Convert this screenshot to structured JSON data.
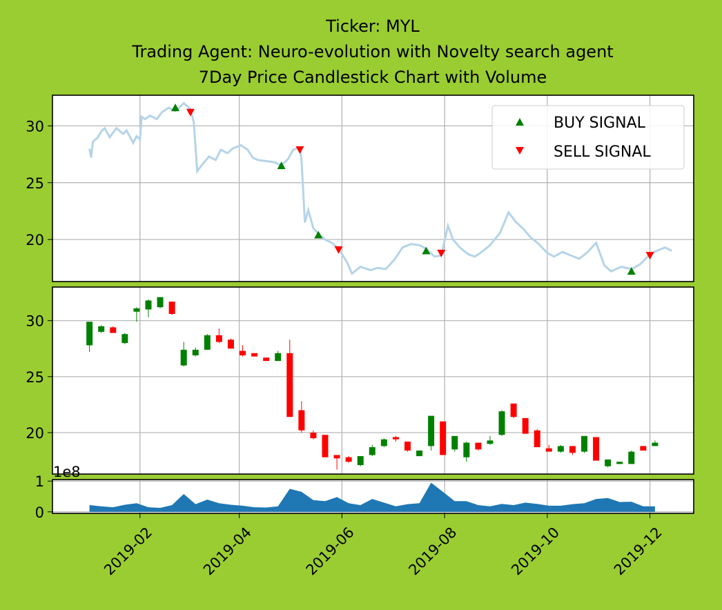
{
  "title_lines": [
    "Ticker: MYL",
    "Trading Agent: Neuro-evolution with Novelty search agent",
    "7Day Price Candlestick Chart with Volume"
  ],
  "chart_data": {
    "type": "candlestick",
    "x_tick_labels": [
      "2019-02",
      "2019-04",
      "2019-06",
      "2019-08",
      "2019-10",
      "2019-12"
    ],
    "x_ticks": [
      "2019-02-01",
      "2019-04-01",
      "2019-06-01",
      "2019-08-01",
      "2019-10-01",
      "2019-12-01"
    ],
    "x_range": [
      "2018-12-11",
      "2019-12-27"
    ],
    "legend_placement": "top-right",
    "colors": {
      "background": "#9acd32",
      "price_line": "#b4d4e8",
      "buy": "#008000",
      "sell": "#ff0000",
      "up_candle": "#008000",
      "down_candle": "#ff0000",
      "volume": "#1f77b4",
      "grid": "#b0b0b0"
    },
    "price_panel": {
      "ylim": [
        16.3,
        32.7
      ],
      "yticks": [
        20,
        25,
        30
      ],
      "grid": true,
      "close_line": [
        [
          "2019-01-02",
          28.0
        ],
        [
          "2019-01-03",
          27.2
        ],
        [
          "2019-01-04",
          28.6
        ],
        [
          "2019-01-07",
          29.0
        ],
        [
          "2019-01-09",
          29.5
        ],
        [
          "2019-01-11",
          29.8
        ],
        [
          "2019-01-14",
          29.0
        ],
        [
          "2019-01-16",
          29.4
        ],
        [
          "2019-01-18",
          29.8
        ],
        [
          "2019-01-22",
          29.3
        ],
        [
          "2019-01-24",
          29.6
        ],
        [
          "2019-01-28",
          28.5
        ],
        [
          "2019-01-30",
          29.1
        ],
        [
          "2019-02-01",
          28.8
        ],
        [
          "2019-02-02",
          30.8
        ],
        [
          "2019-02-04",
          30.6
        ],
        [
          "2019-02-07",
          30.9
        ],
        [
          "2019-02-11",
          30.6
        ],
        [
          "2019-02-14",
          31.2
        ],
        [
          "2019-02-18",
          31.6
        ],
        [
          "2019-02-22",
          31.3
        ],
        [
          "2019-02-27",
          32.0
        ],
        [
          "2019-03-03",
          31.5
        ],
        [
          "2019-03-05",
          30.3
        ],
        [
          "2019-03-07",
          26.0
        ],
        [
          "2019-03-10",
          26.6
        ],
        [
          "2019-03-14",
          27.3
        ],
        [
          "2019-03-18",
          27.0
        ],
        [
          "2019-03-21",
          27.9
        ],
        [
          "2019-03-25",
          27.6
        ],
        [
          "2019-03-28",
          28.0
        ],
        [
          "2019-04-02",
          28.3
        ],
        [
          "2019-04-06",
          27.9
        ],
        [
          "2019-04-09",
          27.2
        ],
        [
          "2019-04-12",
          27.0
        ],
        [
          "2019-04-17",
          26.9
        ],
        [
          "2019-04-22",
          26.8
        ],
        [
          "2019-04-26",
          26.5
        ],
        [
          "2019-04-30",
          27.1
        ],
        [
          "2019-05-03",
          27.9
        ],
        [
          "2019-05-07",
          28.1
        ],
        [
          "2019-05-08",
          26.9
        ],
        [
          "2019-05-10",
          21.5
        ],
        [
          "2019-05-12",
          22.6
        ],
        [
          "2019-05-15",
          21.0
        ],
        [
          "2019-05-18",
          20.5
        ],
        [
          "2019-05-22",
          20.0
        ],
        [
          "2019-05-26",
          19.7
        ],
        [
          "2019-05-30",
          19.2
        ],
        [
          "2019-06-04",
          18.0
        ],
        [
          "2019-06-07",
          17.0
        ],
        [
          "2019-06-12",
          17.6
        ],
        [
          "2019-06-18",
          17.3
        ],
        [
          "2019-06-22",
          17.5
        ],
        [
          "2019-06-27",
          17.4
        ],
        [
          "2019-07-02",
          18.2
        ],
        [
          "2019-07-07",
          19.3
        ],
        [
          "2019-07-12",
          19.6
        ],
        [
          "2019-07-17",
          19.5
        ],
        [
          "2019-07-21",
          19.2
        ],
        [
          "2019-07-26",
          18.5
        ],
        [
          "2019-07-30",
          18.6
        ],
        [
          "2019-08-03",
          21.2
        ],
        [
          "2019-08-06",
          20.0
        ],
        [
          "2019-08-10",
          19.3
        ],
        [
          "2019-08-15",
          18.7
        ],
        [
          "2019-08-19",
          18.5
        ],
        [
          "2019-08-23",
          18.9
        ],
        [
          "2019-08-28",
          19.5
        ],
        [
          "2019-09-03",
          20.6
        ],
        [
          "2019-09-08",
          22.4
        ],
        [
          "2019-09-12",
          21.6
        ],
        [
          "2019-09-17",
          20.9
        ],
        [
          "2019-09-21",
          20.2
        ],
        [
          "2019-09-26",
          19.6
        ],
        [
          "2019-10-01",
          18.8
        ],
        [
          "2019-10-05",
          18.5
        ],
        [
          "2019-10-10",
          18.9
        ],
        [
          "2019-10-15",
          18.6
        ],
        [
          "2019-10-20",
          18.3
        ],
        [
          "2019-10-25",
          18.9
        ],
        [
          "2019-10-30",
          19.7
        ],
        [
          "2019-11-04",
          17.7
        ],
        [
          "2019-11-08",
          17.2
        ],
        [
          "2019-11-14",
          17.6
        ],
        [
          "2019-11-20",
          17.4
        ],
        [
          "2019-11-25",
          17.8
        ],
        [
          "2019-12-01",
          18.7
        ],
        [
          "2019-12-05",
          19.0
        ],
        [
          "2019-12-10",
          19.3
        ],
        [
          "2019-12-14",
          19.0
        ]
      ],
      "buy_signals": [
        [
          "2019-02-22",
          31.6
        ],
        [
          "2019-04-26",
          26.5
        ],
        [
          "2019-05-18",
          20.4
        ],
        [
          "2019-07-21",
          19.0
        ],
        [
          "2019-11-20",
          17.2
        ]
      ],
      "sell_signals": [
        [
          "2019-03-03",
          31.2
        ],
        [
          "2019-05-07",
          27.9
        ],
        [
          "2019-05-30",
          19.1
        ],
        [
          "2019-07-30",
          18.8
        ],
        [
          "2019-12-01",
          18.6
        ]
      ],
      "legend": [
        "BUY SIGNAL",
        "SELL SIGNAL"
      ]
    },
    "candle_panel": {
      "ylim": [
        16.3,
        33.0
      ],
      "yticks": [
        20,
        25,
        30
      ],
      "grid": true,
      "candles": [
        [
          "2019-01-02",
          27.8,
          29.9,
          27.2,
          29.9
        ],
        [
          "2019-01-09",
          29.0,
          29.6,
          28.9,
          29.5
        ],
        [
          "2019-01-16",
          29.4,
          29.5,
          28.9,
          28.9
        ],
        [
          "2019-01-23",
          28.0,
          28.9,
          27.9,
          28.8
        ],
        [
          "2019-01-30",
          30.8,
          31.2,
          29.9,
          31.1
        ],
        [
          "2019-02-06",
          31.0,
          31.9,
          30.3,
          31.8
        ],
        [
          "2019-02-13",
          31.2,
          32.1,
          31.1,
          32.1
        ],
        [
          "2019-02-20",
          31.7,
          31.7,
          30.5,
          30.6
        ],
        [
          "2019-02-27",
          26.0,
          28.1,
          25.9,
          27.4
        ],
        [
          "2019-03-06",
          26.9,
          27.6,
          26.8,
          27.4
        ],
        [
          "2019-03-13",
          27.4,
          28.8,
          27.4,
          28.7
        ],
        [
          "2019-03-20",
          28.7,
          29.3,
          28.0,
          28.1
        ],
        [
          "2019-03-27",
          28.3,
          28.4,
          27.5,
          27.5
        ],
        [
          "2019-04-03",
          27.3,
          27.8,
          26.8,
          26.9
        ],
        [
          "2019-04-10",
          27.1,
          27.1,
          26.8,
          26.8
        ],
        [
          "2019-04-17",
          26.7,
          26.7,
          26.4,
          26.4
        ],
        [
          "2019-04-24",
          26.4,
          27.3,
          26.4,
          27.1
        ],
        [
          "2019-05-01",
          27.1,
          28.3,
          21.4,
          21.4
        ],
        [
          "2019-05-08",
          22.0,
          22.8,
          20.0,
          20.2
        ],
        [
          "2019-05-15",
          20.0,
          20.2,
          19.4,
          19.5
        ],
        [
          "2019-05-22",
          19.8,
          19.8,
          17.8,
          17.8
        ],
        [
          "2019-05-29",
          18.0,
          18.0,
          16.7,
          17.7
        ],
        [
          "2019-06-05",
          17.8,
          17.9,
          17.3,
          17.4
        ],
        [
          "2019-06-12",
          17.1,
          17.9,
          17.0,
          17.9
        ],
        [
          "2019-06-19",
          18.0,
          18.9,
          17.9,
          18.7
        ],
        [
          "2019-06-26",
          18.8,
          19.5,
          18.7,
          19.4
        ],
        [
          "2019-07-03",
          19.6,
          19.7,
          19.2,
          19.4
        ],
        [
          "2019-07-10",
          19.2,
          19.2,
          18.3,
          18.4
        ],
        [
          "2019-07-17",
          17.9,
          18.4,
          17.9,
          18.4
        ],
        [
          "2019-07-24",
          18.8,
          21.5,
          18.4,
          21.5
        ],
        [
          "2019-07-31",
          21.0,
          21.0,
          18.0,
          18.0
        ],
        [
          "2019-08-07",
          18.5,
          19.7,
          18.3,
          19.7
        ],
        [
          "2019-08-14",
          17.8,
          19.2,
          17.4,
          19.1
        ],
        [
          "2019-08-21",
          19.1,
          19.1,
          18.4,
          18.5
        ],
        [
          "2019-08-28",
          19.0,
          19.7,
          18.9,
          19.3
        ],
        [
          "2019-09-04",
          19.8,
          22.0,
          19.7,
          21.9
        ],
        [
          "2019-09-11",
          22.6,
          22.6,
          21.3,
          21.4
        ],
        [
          "2019-09-18",
          21.3,
          21.3,
          19.9,
          19.9
        ],
        [
          "2019-09-25",
          20.2,
          20.3,
          18.7,
          18.7
        ],
        [
          "2019-10-02",
          18.6,
          18.9,
          18.3,
          18.3
        ],
        [
          "2019-10-09",
          18.3,
          18.9,
          18.2,
          18.8
        ],
        [
          "2019-10-16",
          18.8,
          18.8,
          18.0,
          18.2
        ],
        [
          "2019-10-23",
          18.3,
          19.7,
          18.2,
          19.7
        ],
        [
          "2019-10-30",
          19.6,
          19.6,
          17.5,
          17.5
        ],
        [
          "2019-11-06",
          17.0,
          17.6,
          16.9,
          17.6
        ],
        [
          "2019-11-13",
          17.2,
          17.4,
          17.2,
          17.4
        ],
        [
          "2019-11-20",
          17.2,
          18.4,
          17.2,
          18.3
        ],
        [
          "2019-11-27",
          18.8,
          18.8,
          18.4,
          18.4
        ],
        [
          "2019-12-04",
          18.8,
          19.3,
          18.8,
          19.1
        ]
      ]
    },
    "volume_panel": {
      "exponent_label": "1e8",
      "ylim": [
        -0.05,
        1.05
      ],
      "yticks": [
        0,
        1
      ],
      "grid": true,
      "volumes_1e8": [
        0.22,
        0.18,
        0.15,
        0.23,
        0.28,
        0.15,
        0.13,
        0.22,
        0.58,
        0.25,
        0.4,
        0.28,
        0.23,
        0.2,
        0.15,
        0.14,
        0.18,
        0.75,
        0.65,
        0.38,
        0.35,
        0.48,
        0.28,
        0.22,
        0.42,
        0.3,
        0.18,
        0.25,
        0.28,
        0.95,
        0.65,
        0.35,
        0.35,
        0.22,
        0.18,
        0.26,
        0.22,
        0.3,
        0.26,
        0.2,
        0.2,
        0.25,
        0.28,
        0.42,
        0.45,
        0.32,
        0.33,
        0.18,
        0.18
      ]
    }
  }
}
